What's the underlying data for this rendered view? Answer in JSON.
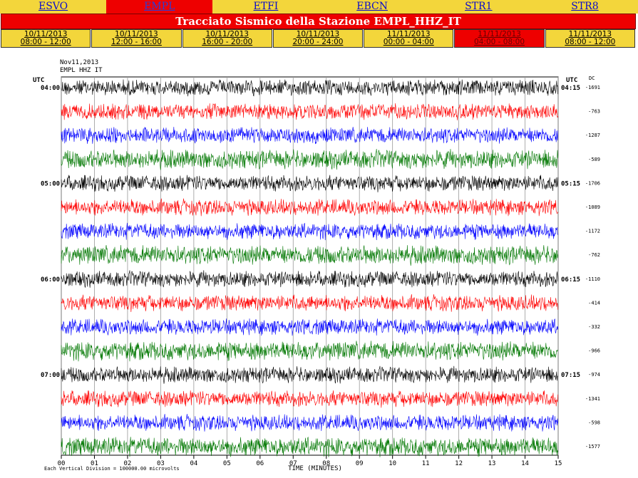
{
  "stations": [
    "ESVO",
    "EMPL",
    "ETFI",
    "EBCN",
    "STR1",
    "STR8"
  ],
  "active_station": 1,
  "title": "Tracciato Sismico della Stazione EMPL_HHZ_IT",
  "periods": [
    {
      "date": "10/11/2013",
      "time": "08:00 - 12:00"
    },
    {
      "date": "10/11/2013",
      "time": "12:00 - 16:00"
    },
    {
      "date": "10/11/2013",
      "time": "16:00 - 20:00"
    },
    {
      "date": "10/11/2013",
      "time": "20:00 - 24:00"
    },
    {
      "date": "11/11/2013",
      "time": "00:00 - 04:00"
    },
    {
      "date": "11/11/2013",
      "time": "04:00 - 08:00"
    },
    {
      "date": "11/11/2013",
      "time": "08:00 - 12:00"
    }
  ],
  "active_period": 5,
  "plot": {
    "header_date": "Nov11,2013",
    "header_station": "EMPL HHZ IT",
    "utc_label": "UTC",
    "dc_label": "DC",
    "left_times": [
      "04:00",
      "05:00",
      "06:00",
      "07:00"
    ],
    "right_times": [
      "04:15",
      "05:15",
      "06:15",
      "07:15"
    ],
    "dc_values": [
      "-1691",
      "-763",
      "-1287",
      "-589",
      "-1706",
      "-1089",
      "-1172",
      "-762",
      "-1110",
      "-414",
      "-332",
      "-966",
      "-974",
      "-1341",
      "-598",
      "-1577"
    ],
    "x_ticks": [
      "00",
      "01",
      "02",
      "03",
      "04",
      "05",
      "06",
      "07",
      "08",
      "09",
      "10",
      "11",
      "12",
      "13",
      "14",
      "15"
    ],
    "x_axis_label": "TIME (MINUTES)",
    "footer_note": "Each Vertical Division = 100000.00 microvolts",
    "trace_colors": [
      "#000000",
      "#ff0000",
      "#0000ff",
      "#007700"
    ]
  }
}
